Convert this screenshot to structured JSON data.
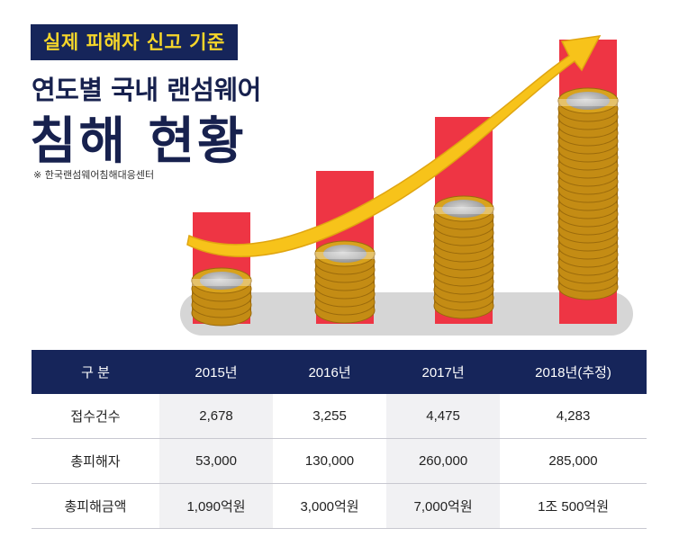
{
  "header": {
    "badge": "실제 피해자 신고 기준",
    "title_line1": "연도별 국내 랜섬웨어",
    "title_line2": "침해 현황",
    "source": "※ 한국랜섬웨어침해대응센터"
  },
  "colors": {
    "navy": "#16255a",
    "badge_text": "#f6d62a",
    "bar_red": "#ee3544",
    "arrow": "#f7c31a",
    "coin": "#e2ab1f"
  },
  "chart_data": {
    "type": "bar",
    "categories": [
      "2015년",
      "2016년",
      "2017년",
      "2018년(추정)"
    ],
    "series": [
      {
        "values": [
          2678,
          3255,
          4475,
          4283
        ]
      }
    ]
  },
  "table": {
    "headers": [
      "구  분",
      "2015년",
      "2016년",
      "2017년",
      "2018년(추정)"
    ],
    "rows": [
      {
        "label": "접수건수",
        "cells": [
          "2,678",
          "3,255",
          "4,475",
          "4,283"
        ]
      },
      {
        "label": "총피해자",
        "cells": [
          "53,000",
          "130,000",
          "260,000",
          "285,000"
        ]
      },
      {
        "label": "총피해금액",
        "cells": [
          "1,090억원",
          "3,000억원",
          "7,000억원",
          "1조 500억원"
        ]
      }
    ]
  }
}
